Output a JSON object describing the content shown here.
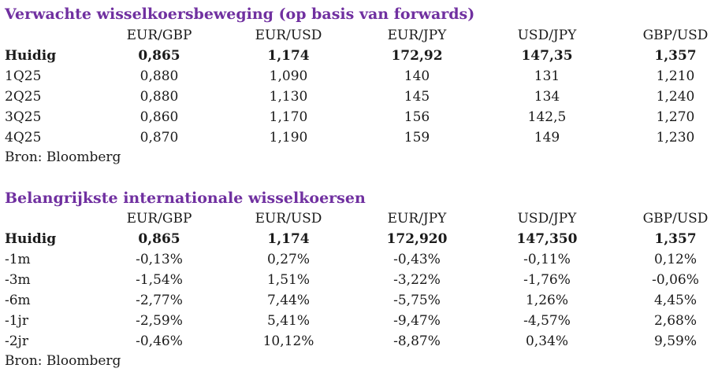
{
  "forecast": {
    "title": "Verwachte wisselkoersbeweging (op basis van forwards)",
    "columns": [
      "EUR/GBP",
      "EUR/USD",
      "EUR/JPY",
      "USD/JPY",
      "GBP/USD"
    ],
    "rows": [
      {
        "label": "Huidig",
        "values": [
          "0,865",
          "1,174",
          "172,92",
          "147,35",
          "1,357"
        ]
      },
      {
        "label": "1Q25",
        "values": [
          "0,880",
          "1,090",
          "140",
          "131",
          "1,210"
        ]
      },
      {
        "label": "2Q25",
        "values": [
          "0,880",
          "1,130",
          "145",
          "134",
          "1,240"
        ]
      },
      {
        "label": "3Q25",
        "values": [
          "0,860",
          "1,170",
          "156",
          "142,5",
          "1,270"
        ]
      },
      {
        "label": "4Q25",
        "values": [
          "0,870",
          "1,190",
          "159",
          "149",
          "1,230"
        ]
      }
    ],
    "source": "Bron: Bloomberg"
  },
  "rates": {
    "title": "Belangrijkste internationale wisselkoersen",
    "columns": [
      "EUR/GBP",
      "EUR/USD",
      "EUR/JPY",
      "USD/JPY",
      "GBP/USD"
    ],
    "rows": [
      {
        "label": "Huidig",
        "values": [
          "0,865",
          "1,174",
          "172,920",
          "147,350",
          "1,357"
        ]
      },
      {
        "label": "-1m",
        "values": [
          "-0,13%",
          "0,27%",
          "-0,43%",
          "-0,11%",
          "0,12%"
        ]
      },
      {
        "label": "-3m",
        "values": [
          "-1,54%",
          "1,51%",
          "-3,22%",
          "-1,76%",
          "-0,06%"
        ]
      },
      {
        "label": "-6m",
        "values": [
          "-2,77%",
          "7,44%",
          "-5,75%",
          "1,26%",
          "4,45%"
        ]
      },
      {
        "label": "-1jr",
        "values": [
          "-2,59%",
          "5,41%",
          "-9,47%",
          "-4,57%",
          "2,68%"
        ]
      },
      {
        "label": "-2jr",
        "values": [
          "-0,46%",
          "10,12%",
          "-8,87%",
          "0,34%",
          "9,59%"
        ]
      }
    ],
    "source": "Bron: Bloomberg"
  }
}
